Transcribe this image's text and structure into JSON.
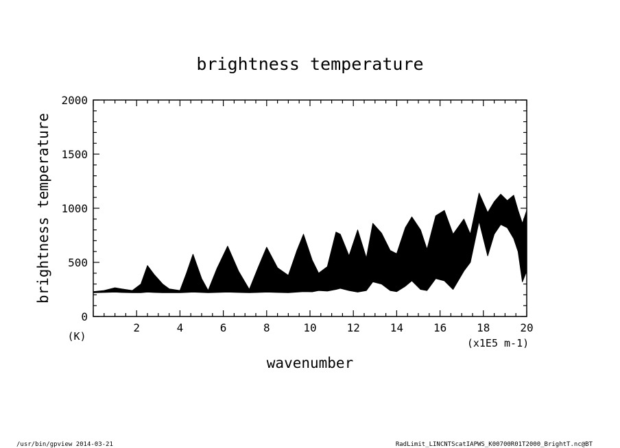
{
  "chart_data": {
    "type": "area",
    "title": "brightness temperature",
    "xlabel": "wavenumber",
    "ylabel": "brightness temperature",
    "x_unit": "(x1E5 m-1)",
    "y_unit": "(K)",
    "xlim": [
      0,
      20
    ],
    "ylim": [
      0,
      2000
    ],
    "x_ticks": [
      2,
      4,
      6,
      8,
      10,
      12,
      14,
      16,
      18,
      20
    ],
    "y_ticks": [
      0,
      500,
      1000,
      1500,
      2000
    ],
    "grid": false,
    "series": [
      {
        "x": [
          0,
          0.5,
          1.0,
          1.3,
          1.8,
          2.2,
          2.5,
          2.8,
          3.2,
          3.5,
          4.0,
          4.3,
          4.6,
          5.0,
          5.3,
          5.7,
          6.2,
          6.7,
          7.2,
          7.6,
          8.0,
          8.5,
          9.0,
          9.4,
          9.7,
          10.1,
          10.4,
          10.8,
          11.2,
          11.4,
          11.8,
          12.2,
          12.6,
          12.9,
          13.3,
          13.7,
          14.0,
          14.4,
          14.7,
          15.1,
          15.4,
          15.8,
          16.2,
          16.6,
          17.1,
          17.4,
          17.8,
          18.2,
          18.5,
          18.8,
          19.1,
          19.4,
          19.6,
          19.8,
          20.0
        ],
        "upper": [
          230,
          240,
          265,
          255,
          240,
          300,
          470,
          390,
          300,
          255,
          240,
          400,
          575,
          350,
          240,
          440,
          650,
          420,
          250,
          450,
          640,
          450,
          380,
          610,
          760,
          520,
          400,
          460,
          780,
          760,
          560,
          800,
          540,
          860,
          770,
          610,
          580,
          820,
          920,
          800,
          620,
          930,
          980,
          760,
          900,
          760,
          1140,
          960,
          1060,
          1130,
          1070,
          1120,
          980,
          860,
          980
        ],
        "lower": [
          220,
          222,
          225,
          222,
          220,
          220,
          225,
          222,
          220,
          220,
          220,
          222,
          225,
          222,
          220,
          222,
          225,
          222,
          220,
          222,
          225,
          222,
          220,
          225,
          230,
          228,
          240,
          235,
          250,
          260,
          240,
          225,
          240,
          320,
          300,
          240,
          230,
          280,
          330,
          250,
          240,
          350,
          330,
          250,
          420,
          500,
          880,
          560,
          760,
          850,
          820,
          720,
          600,
          320,
          420
        ]
      }
    ]
  },
  "footer": {
    "left": "/usr/bin/gpview   2014-03-21",
    "right": "RadLimit_LINCNTScatIAPWS_K00700R01T2000_BrightT.nc@BT"
  }
}
